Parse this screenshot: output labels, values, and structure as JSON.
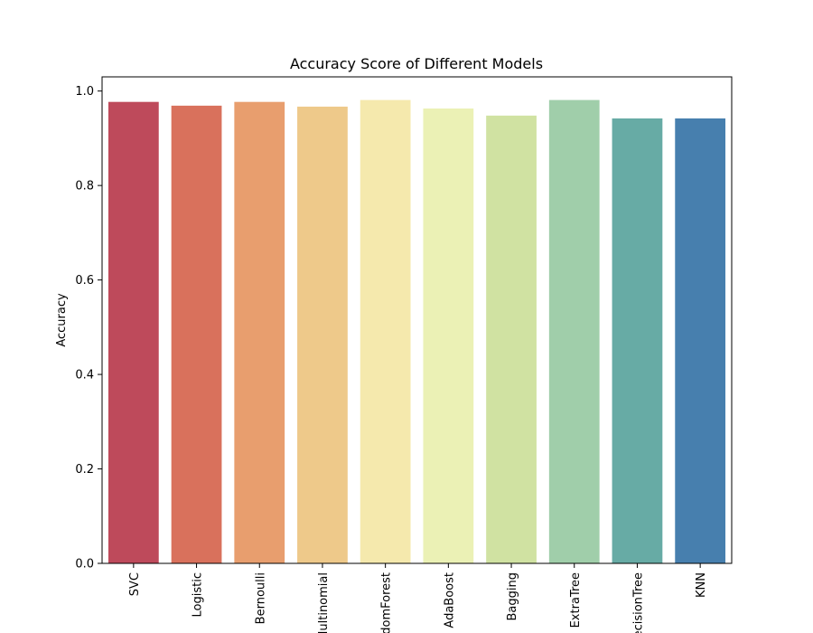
{
  "chart_data": {
    "type": "bar",
    "title": "Accuracy Score of Different Models",
    "xlabel": "",
    "ylabel": "Accuracy",
    "categories": [
      "SVC",
      "Logistic",
      "Bernoulli",
      "Multinomial",
      "RandomForest",
      "AdaBoost",
      "Bagging",
      "ExtraTree",
      "DecisionTree",
      "KNN"
    ],
    "values": [
      0.977,
      0.969,
      0.977,
      0.967,
      0.981,
      0.963,
      0.948,
      0.981,
      0.942,
      0.942
    ],
    "ylim": [
      0,
      1.03
    ],
    "yticks": [
      0.0,
      0.2,
      0.4,
      0.6,
      0.8,
      1.0
    ],
    "ytick_labels": [
      "0.0",
      "0.2",
      "0.4",
      "0.6",
      "0.8",
      "1.0"
    ],
    "grid": false,
    "legend": "none",
    "colors": [
      "#be4a5b",
      "#d9715c",
      "#e89e6e",
      "#eec98a",
      "#f5e9ad",
      "#ebf1b5",
      "#d0e2a2",
      "#a0ceaa",
      "#67aba5",
      "#477fae"
    ]
  }
}
